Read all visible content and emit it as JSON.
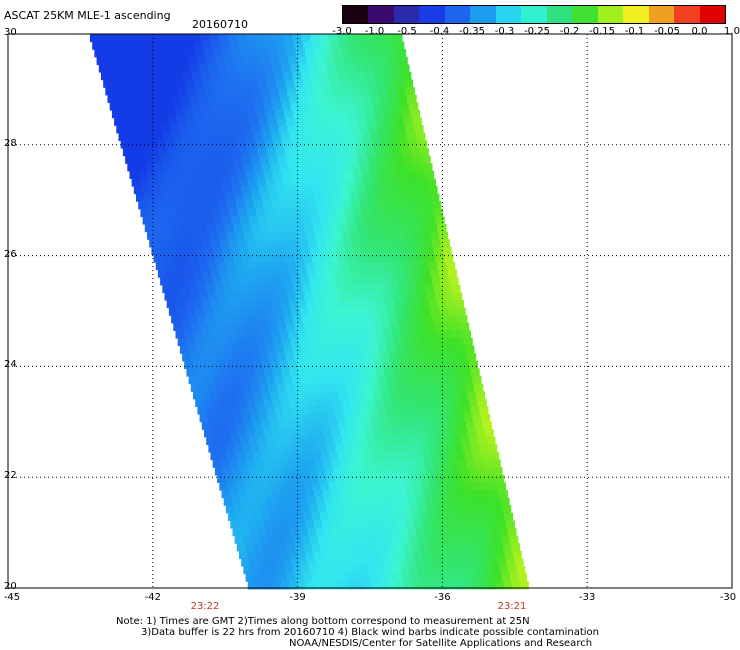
{
  "header": {
    "title": "ASCAT 25KM MLE-1 ascending",
    "date": "20160710"
  },
  "colorbar": {
    "labels": [
      "-3.0",
      "-1.0",
      "-0.5",
      "-0.4",
      "-0.35",
      "-0.3",
      "-0.25",
      "-0.2",
      "-0.15",
      "-0.1",
      "-0.05",
      "0.0",
      "1.0"
    ],
    "colors": [
      "#1a0010",
      "#3a0a6e",
      "#2a2aaa",
      "#1a3ce6",
      "#1e66f0",
      "#1e9cf0",
      "#28d4f0",
      "#30f0d0",
      "#30e080",
      "#40e030",
      "#a0f020",
      "#f0f020",
      "#f0a020",
      "#f04020",
      "#e00000"
    ]
  },
  "axes": {
    "y_labels": [
      "30",
      "28",
      "26",
      "24",
      "22",
      "20"
    ],
    "x_labels": [
      "-45",
      "-42",
      "-39",
      "-36",
      "-33",
      "-30"
    ],
    "times": [
      "23:22",
      "23:21"
    ]
  },
  "notes": {
    "line1": "Note: 1) Times are GMT 2)Times along bottom correspond to measurement at 25N",
    "line2": "3)Data buffer is 22 hrs from 20160710 4) Black wind barbs indicate possible contamination",
    "line3": "NOAA/NESDIS/Center for Satellite Applications and Research"
  }
}
